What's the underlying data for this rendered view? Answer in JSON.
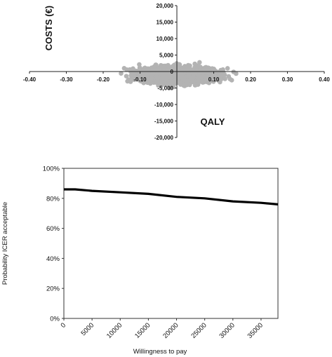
{
  "chart_data": [
    {
      "type": "scatter",
      "xlabel": "QALY",
      "ylabel": "COSTS (€)",
      "xlim": [
        -0.4,
        0.4
      ],
      "ylim": [
        -20000,
        20000
      ],
      "x_ticks": [
        "-0.40",
        "-0.30",
        "-0.20",
        "-0.10",
        "0.00",
        "0.10",
        "0.20",
        "0.30",
        "0.40"
      ],
      "y_ticks": [
        "20,000",
        "15,000",
        "10,000",
        "5,000",
        "0",
        "-5,000",
        "-10,000",
        "-15,000",
        "-20,000"
      ],
      "grid": false,
      "point_color": "#b3b3b3",
      "cloud": {
        "description_values": "simulated QALY/cost pairs",
        "x_range": [
          -0.2,
          0.21
        ],
        "y_range": [
          -7000,
          4500
        ],
        "x_center": 0.0,
        "y_center": -1000
      }
    },
    {
      "type": "line",
      "xlabel": "Willingness to pay",
      "ylabel": "Probability ICER acceptable",
      "xlim": [
        0,
        38000
      ],
      "ylim": [
        0,
        1
      ],
      "x_ticks": [
        "0",
        "5000",
        "10000",
        "15000",
        "20000",
        "25000",
        "30000",
        "35000"
      ],
      "y_ticks": [
        "100%",
        "80%",
        "60%",
        "40%",
        "20%",
        "0%"
      ],
      "grid": false,
      "line_color": "#000000",
      "series": [
        {
          "x": [
            0,
            2000,
            5000,
            10000,
            15000,
            20000,
            25000,
            30000,
            35000,
            38000
          ],
          "values": [
            0.86,
            0.86,
            0.85,
            0.84,
            0.83,
            0.81,
            0.8,
            0.78,
            0.77,
            0.76
          ]
        }
      ]
    }
  ]
}
